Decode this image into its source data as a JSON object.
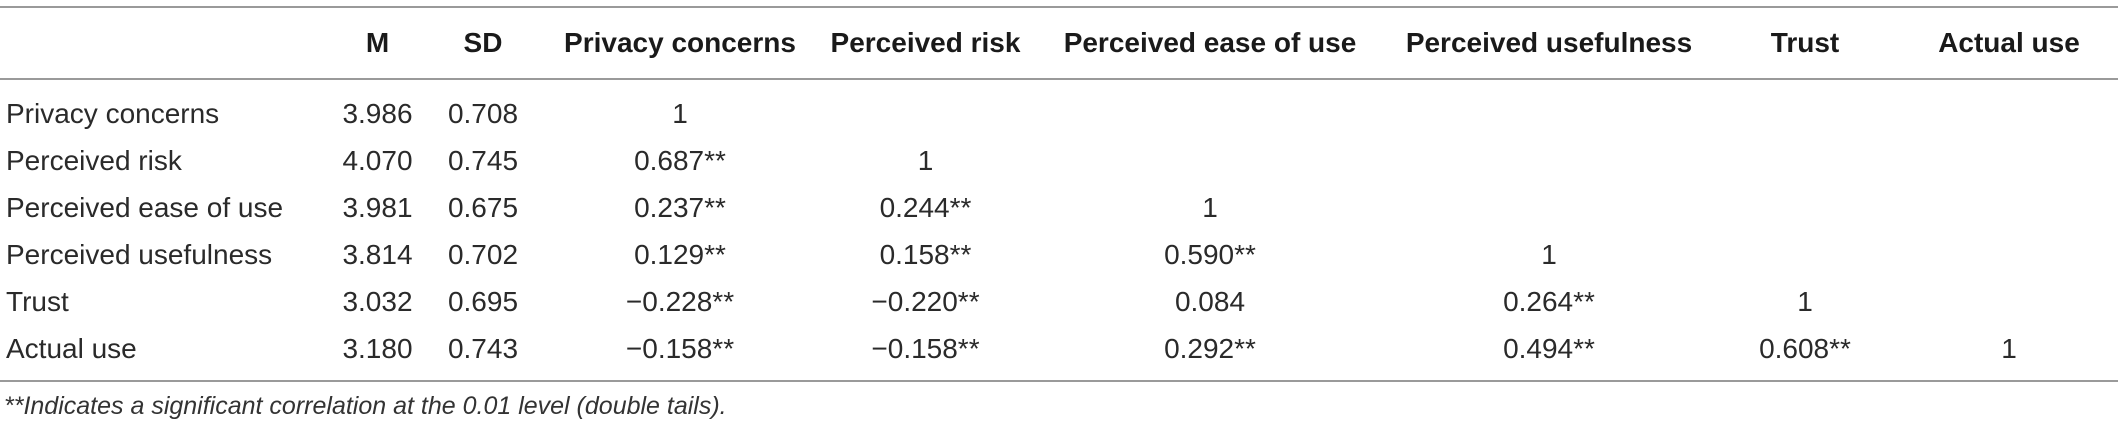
{
  "table": {
    "headers": [
      "",
      "M",
      "SD",
      "Privacy concerns",
      "Perceived risk",
      "Perceived ease of use",
      "Perceived usefulness",
      "Trust",
      "Actual use"
    ],
    "rows": [
      [
        "Privacy concerns",
        "3.986",
        "0.708",
        "1",
        "",
        "",
        "",
        "",
        ""
      ],
      [
        "Perceived risk",
        "4.070",
        "0.745",
        "0.687**",
        "1",
        "",
        "",
        "",
        ""
      ],
      [
        "Perceived ease of use",
        "3.981",
        "0.675",
        "0.237**",
        "0.244**",
        "1",
        "",
        "",
        ""
      ],
      [
        "Perceived usefulness",
        "3.814",
        "0.702",
        "0.129**",
        "0.158**",
        "0.590**",
        "1",
        "",
        ""
      ],
      [
        "Trust",
        "3.032",
        "0.695",
        "−0.228**",
        "−0.220**",
        "0.084",
        "0.264**",
        "1",
        ""
      ],
      [
        "Actual use",
        "3.180",
        "0.743",
        "−0.158**",
        "−0.158**",
        "0.292**",
        "0.494**",
        "0.608**",
        "1"
      ]
    ]
  },
  "footnote": "**Indicates a significant correlation at the 0.01 level (double tails)."
}
